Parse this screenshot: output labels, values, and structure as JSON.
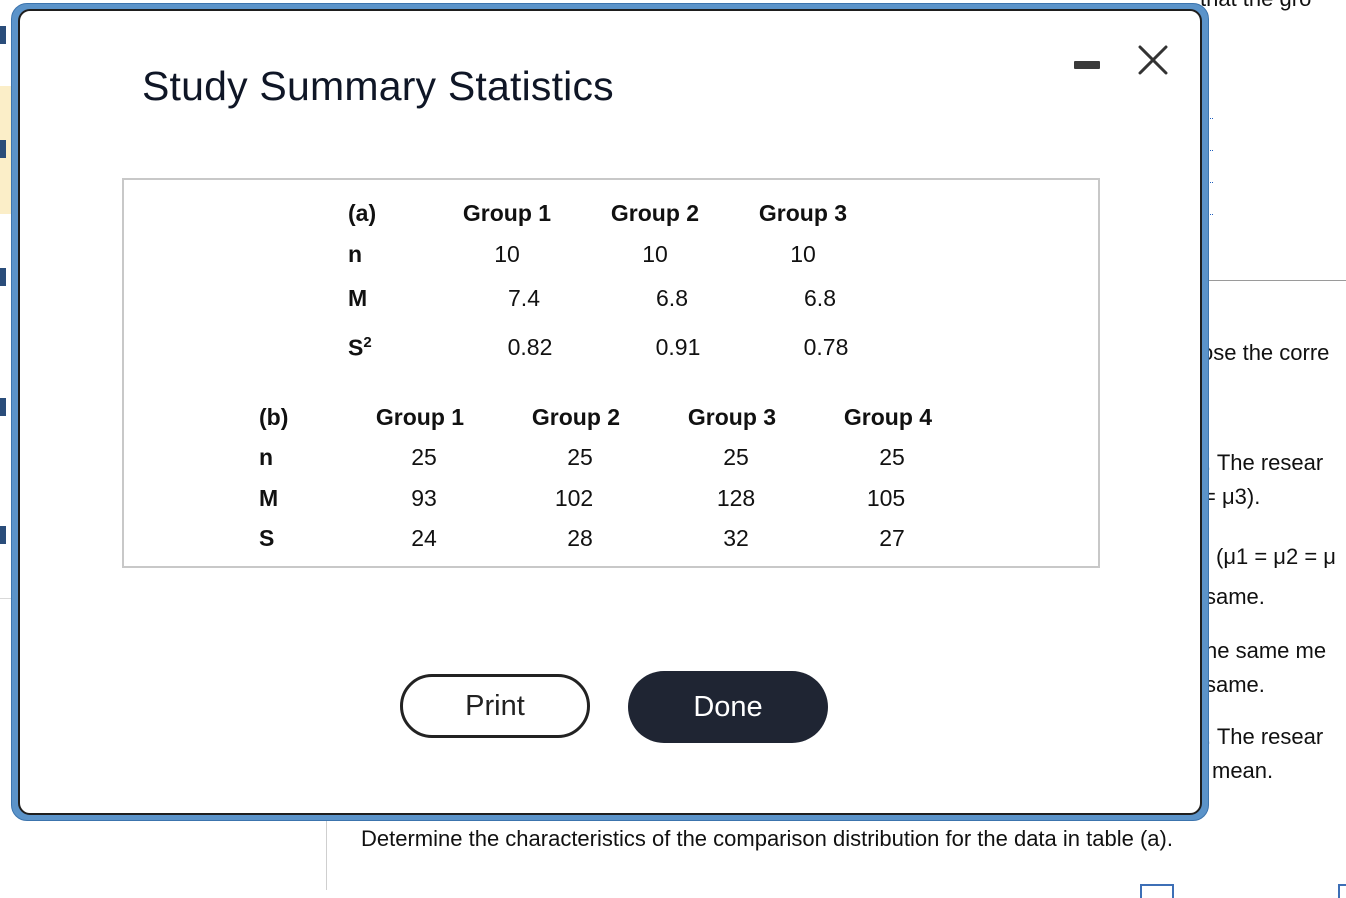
{
  "modal": {
    "title": "Study Summary Statistics",
    "print_label": "Print",
    "done_label": "Done"
  },
  "table_a": {
    "label": "(a)",
    "headers": [
      "Group 1",
      "Group 2",
      "Group 3"
    ],
    "rows": [
      {
        "label": "n",
        "values": [
          "10",
          "10",
          "10"
        ]
      },
      {
        "label": "M",
        "values": [
          "7.4",
          "6.8",
          "6.8"
        ]
      },
      {
        "label": "S",
        "sup": "2",
        "values": [
          "0.82",
          "0.91",
          "0.78"
        ]
      }
    ]
  },
  "table_b": {
    "label": "(b)",
    "headers": [
      "Group 1",
      "Group 2",
      "Group 3",
      "Group 4"
    ],
    "rows": [
      {
        "label": "n",
        "values": [
          "25",
          "25",
          "25",
          "25"
        ]
      },
      {
        "label": "M",
        "values": [
          "93",
          "102",
          "128",
          "105"
        ]
      },
      {
        "label": "S",
        "values": [
          "24",
          "28",
          "32",
          "27"
        ]
      }
    ]
  },
  "background": {
    "top_fragment": "that the gro",
    "fragments": [
      "ose the corre",
      ". The resear",
      "= μ3).",
      "(μ1 = μ2 = μ",
      "same.",
      "he same me",
      "same.",
      ". The resear",
      "mean."
    ],
    "bottom_text": "Determine the characteristics of the comparison distribution for the data in table (a)."
  }
}
